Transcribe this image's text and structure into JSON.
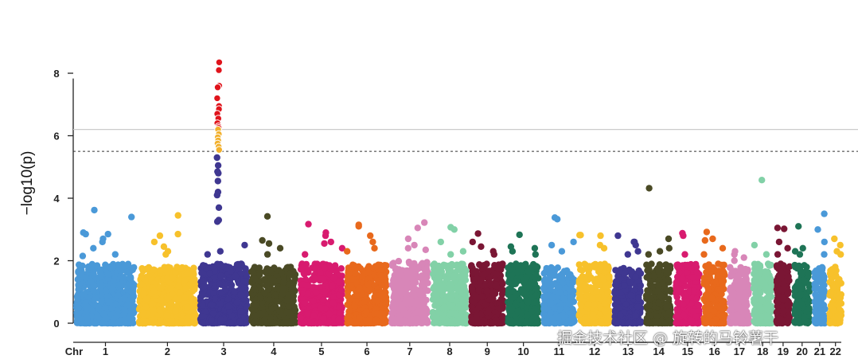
{
  "chart_data": {
    "type": "scatter",
    "subtype": "manhattan",
    "ylabel": "−log10(p)",
    "xlabel_prefix": "Chr",
    "ylim": [
      0,
      8.8
    ],
    "yticks": [
      0,
      2,
      4,
      6,
      8
    ],
    "thresholds": [
      {
        "y": 6.2,
        "style": "solid",
        "color": "#cccccc"
      },
      {
        "y": 5.5,
        "style": "dashed",
        "color": "#333333"
      }
    ],
    "grid": false,
    "legend": "none",
    "chromosomes": [
      {
        "label": "1",
        "color": "#4a99d8",
        "noise_max": 1.9,
        "top": [
          3.62,
          3.4,
          2.9,
          2.85,
          2.85,
          2.7,
          2.6,
          2.4,
          2.2,
          2.15
        ]
      },
      {
        "label": "2",
        "color": "#f7c12b",
        "noise_max": 1.8,
        "top": [
          3.45,
          2.85,
          2.8,
          2.6,
          2.45,
          2.3,
          2.2
        ]
      },
      {
        "label": "3",
        "color": "#3f3791",
        "noise_max": 1.9,
        "top": [
          8.35,
          8.1,
          7.6,
          7.55,
          7.2,
          6.95,
          6.85,
          6.7,
          6.55,
          6.4,
          6.3,
          6.25,
          6.2,
          6.05,
          5.95,
          5.85,
          5.75,
          5.65,
          5.55,
          5.3,
          5.05,
          4.85,
          4.8,
          4.55,
          4.2,
          4.1,
          3.7,
          3.3,
          3.25,
          2.5,
          2.3,
          2.2
        ]
      },
      {
        "label": "4",
        "color": "#4a4a25",
        "noise_max": 1.8,
        "top": [
          3.42,
          2.65,
          2.55,
          2.4,
          2.2
        ]
      },
      {
        "label": "5",
        "color": "#d81b6f",
        "noise_max": 1.9,
        "top": [
          3.17,
          2.9,
          2.8,
          2.6,
          2.55,
          2.4,
          2.2
        ]
      },
      {
        "label": "6",
        "color": "#e8691c",
        "noise_max": 1.9,
        "top": [
          3.15,
          3.1,
          2.8,
          2.6,
          2.4,
          2.3
        ]
      },
      {
        "label": "7",
        "color": "#d886b8",
        "noise_max": 2.0,
        "top": [
          3.22,
          3.05,
          2.7,
          2.5,
          2.4,
          2.35
        ]
      },
      {
        "label": "8",
        "color": "#82d1a7",
        "noise_max": 1.9,
        "top": [
          3.07,
          3.0,
          2.6,
          2.3,
          2.2
        ]
      },
      {
        "label": "9",
        "color": "#7a1634",
        "noise_max": 1.9,
        "top": [
          2.87,
          2.6,
          2.45,
          2.3,
          2.2
        ]
      },
      {
        "label": "10",
        "color": "#1e7456",
        "noise_max": 1.9,
        "top": [
          2.83,
          2.45,
          2.4,
          2.3,
          2.2
        ]
      },
      {
        "label": "11",
        "color": "#4a99d8",
        "noise_max": 1.8,
        "top": [
          3.38,
          3.33,
          2.6,
          2.5,
          2.3
        ]
      },
      {
        "label": "12",
        "color": "#f7c12b",
        "noise_max": 1.9,
        "top": [
          2.82,
          2.82,
          2.8,
          2.5,
          2.4
        ]
      },
      {
        "label": "13",
        "color": "#3f3791",
        "noise_max": 1.8,
        "top": [
          2.8,
          2.6,
          2.6,
          2.5,
          2.3,
          2.2
        ]
      },
      {
        "label": "14",
        "color": "#4a4a25",
        "noise_max": 1.9,
        "top": [
          4.32,
          2.7,
          2.4,
          2.3,
          2.2
        ]
      },
      {
        "label": "15",
        "color": "#d81b6f",
        "noise_max": 1.9,
        "top": [
          2.88,
          2.8,
          2.2
        ]
      },
      {
        "label": "16",
        "color": "#e8691c",
        "noise_max": 1.9,
        "top": [
          2.92,
          2.7,
          2.65,
          2.4,
          2.2
        ]
      },
      {
        "label": "17",
        "color": "#d886b8",
        "noise_max": 1.8,
        "top": [
          2.3,
          2.2,
          2.1,
          2.0
        ]
      },
      {
        "label": "18",
        "color": "#82d1a7",
        "noise_max": 1.9,
        "top": [
          4.58,
          2.5,
          2.2
        ]
      },
      {
        "label": "19",
        "color": "#7a1634",
        "noise_max": 1.9,
        "top": [
          3.05,
          3.02,
          2.6,
          2.4,
          2.2
        ]
      },
      {
        "label": "20",
        "color": "#1e7456",
        "noise_max": 1.9,
        "top": [
          3.1,
          2.4,
          2.3,
          2.2
        ]
      },
      {
        "label": "21",
        "color": "#4a99d8",
        "noise_max": 1.8,
        "top": [
          3.5,
          3.0,
          2.6,
          2.2
        ]
      },
      {
        "label": "22",
        "color": "#f7c12b",
        "noise_max": 1.8,
        "top": [
          2.7,
          2.5,
          2.3,
          2.2
        ]
      }
    ],
    "highlight": {
      "above_solid_color": "#e0141c",
      "between_lines_color": "#f2b02c",
      "outline": "#ffffff"
    }
  },
  "watermark": "掘金技术社区 @ 旋转的马铃薯干"
}
